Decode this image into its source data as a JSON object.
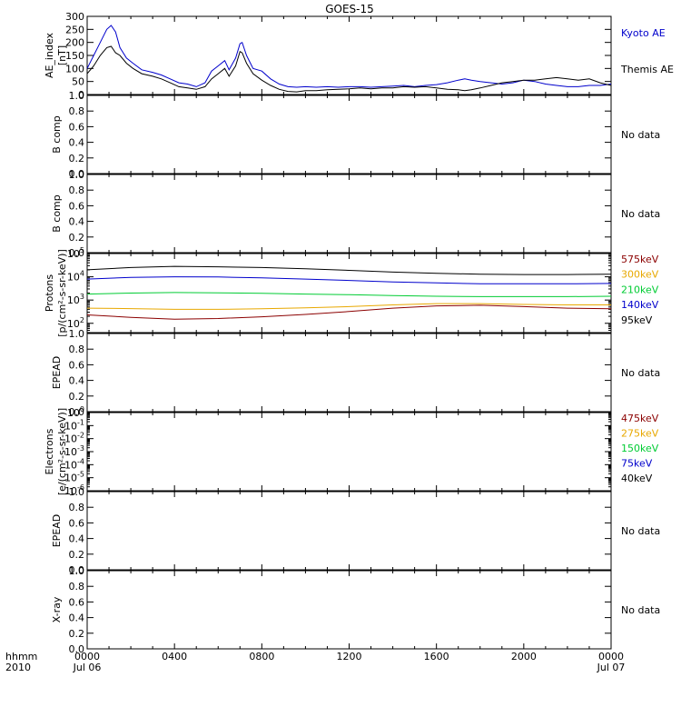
{
  "chart_data": {
    "type": "line",
    "title": "GOES-15",
    "x_axis": {
      "row_label_top": "hhmm",
      "row_label_bottom": "2010",
      "ticks": [
        {
          "hours": 0,
          "label": "0000",
          "sublabel": "Jul 06"
        },
        {
          "hours": 4,
          "label": "0400",
          "sublabel": ""
        },
        {
          "hours": 8,
          "label": "0800",
          "sublabel": ""
        },
        {
          "hours": 12,
          "label": "1200",
          "sublabel": ""
        },
        {
          "hours": 16,
          "label": "1600",
          "sublabel": ""
        },
        {
          "hours": 20,
          "label": "2000",
          "sublabel": ""
        },
        {
          "hours": 24,
          "label": "0000",
          "sublabel": "Jul 07"
        }
      ],
      "range_hours": [
        0,
        24
      ]
    },
    "panels": [
      {
        "id": "ae",
        "ylabel": [
          "AE_index",
          "[nT]"
        ],
        "scale": "linear",
        "ylim": [
          0,
          300
        ],
        "yticks": [
          "0",
          "50",
          "100",
          "150",
          "200",
          "250",
          "300"
        ],
        "yticks_values": [
          0,
          50,
          100,
          150,
          200,
          250,
          300
        ],
        "legend": [
          {
            "name": "Kyoto AE",
            "color": "#0000cc"
          },
          {
            "name": "Themis AE",
            "color": "#000000"
          }
        ],
        "series": [
          {
            "name": "Kyoto AE",
            "color": "#0000cc",
            "x": [
              0,
              0.3,
              0.6,
              0.9,
              1.1,
              1.3,
              1.5,
              1.8,
              2.1,
              2.5,
              3.0,
              3.4,
              3.8,
              4.2,
              4.6,
              5.0,
              5.4,
              5.7,
              6.0,
              6.3,
              6.5,
              6.8,
              7.0,
              7.1,
              7.3,
              7.6,
              8.0,
              8.4,
              8.8,
              9.2,
              9.6,
              10.0,
              10.5,
              11,
              11.5,
              12,
              12.5,
              13,
              13.5,
              14,
              14.5,
              15,
              15.5,
              16,
              16.5,
              17,
              17.3,
              17.6,
              18,
              18.5,
              19,
              19.5,
              20,
              20.5,
              21,
              21.5,
              22,
              22.5,
              23,
              23.5,
              24
            ],
            "y": [
              100,
              150,
              200,
              250,
              265,
              240,
              180,
              140,
              120,
              95,
              85,
              75,
              60,
              45,
              40,
              30,
              45,
              90,
              110,
              130,
              95,
              140,
              195,
              200,
              150,
              100,
              90,
              60,
              40,
              30,
              28,
              30,
              28,
              30,
              28,
              30,
              30,
              28,
              30,
              32,
              35,
              30,
              35,
              38,
              45,
              55,
              60,
              55,
              50,
              45,
              40,
              45,
              55,
              50,
              40,
              35,
              30,
              30,
              35,
              35,
              40
            ]
          },
          {
            "name": "Themis AE",
            "color": "#000000",
            "x": [
              0,
              0.3,
              0.6,
              0.9,
              1.1,
              1.3,
              1.5,
              1.8,
              2.1,
              2.5,
              3.0,
              3.4,
              3.8,
              4.2,
              4.6,
              5.0,
              5.4,
              5.7,
              6.0,
              6.3,
              6.5,
              6.8,
              7.0,
              7.1,
              7.3,
              7.6,
              8.0,
              8.4,
              8.8,
              9.2,
              9.6,
              10.0,
              10.5,
              11,
              11.5,
              12,
              12.5,
              13,
              13.5,
              14,
              14.5,
              15,
              15.5,
              16,
              16.5,
              17,
              17.3,
              17.6,
              18,
              18.5,
              19,
              19.5,
              20,
              20.5,
              21,
              21.5,
              22,
              22.5,
              23,
              23.5,
              24
            ],
            "y": [
              80,
              110,
              150,
              180,
              185,
              160,
              150,
              120,
              100,
              80,
              70,
              60,
              45,
              30,
              25,
              20,
              30,
              60,
              80,
              100,
              70,
              110,
              165,
              160,
              120,
              80,
              55,
              35,
              20,
              12,
              10,
              15,
              15,
              18,
              20,
              22,
              25,
              22,
              25,
              25,
              30,
              28,
              30,
              25,
              20,
              18,
              15,
              18,
              25,
              35,
              45,
              50,
              55,
              55,
              60,
              65,
              60,
              55,
              60,
              45,
              35
            ]
          }
        ]
      },
      {
        "id": "b1",
        "ylabel": [
          "B comp"
        ],
        "scale": "linear",
        "ylim": [
          0,
          1
        ],
        "yticks": [
          "0.0",
          "0.2",
          "0.4",
          "0.6",
          "0.8",
          "1.0"
        ],
        "yticks_values": [
          0,
          0.2,
          0.4,
          0.6,
          0.8,
          1.0
        ],
        "annotation": "No data"
      },
      {
        "id": "b2",
        "ylabel": [
          "B comp"
        ],
        "scale": "linear",
        "ylim": [
          0,
          1
        ],
        "yticks": [
          "0.0",
          "0.2",
          "0.4",
          "0.6",
          "0.8",
          "1.0"
        ],
        "yticks_values": [
          0,
          0.2,
          0.4,
          0.6,
          0.8,
          1.0
        ],
        "annotation": "No data"
      },
      {
        "id": "protons",
        "ylabel": [
          "Protons",
          "[p/(cm²-s-sr-keV)]"
        ],
        "scale": "log",
        "ylim_exp": [
          1.6,
          5
        ],
        "yticks": [
          {
            "mantissa": "10",
            "exp": "2",
            "value_exp": 2
          },
          {
            "mantissa": "10",
            "exp": "3",
            "value_exp": 3
          },
          {
            "mantissa": "10",
            "exp": "4",
            "value_exp": 4
          },
          {
            "mantissa": "10",
            "exp": "5",
            "value_exp": 5
          }
        ],
        "legend": [
          {
            "name": "575keV",
            "color": "#8b0000"
          },
          {
            "name": "300keV",
            "color": "#e8a800"
          },
          {
            "name": "210keV",
            "color": "#00cc33"
          },
          {
            "name": "140keV",
            "color": "#0000cc"
          },
          {
            "name": "95keV",
            "color": "#000000"
          }
        ],
        "series": [
          {
            "name": "95keV",
            "color": "#000000",
            "x": [
              0,
              2,
              4,
              6,
              8,
              10,
              12,
              14,
              16,
              18,
              20,
              22,
              24
            ],
            "y": [
              20000,
              25000,
              28000,
              27000,
              25000,
              22000,
              19000,
              16000,
              14000,
              13000,
              12500,
              12500,
              13000
            ]
          },
          {
            "name": "140keV",
            "color": "#0000cc",
            "x": [
              0,
              2,
              4,
              6,
              8,
              10,
              12,
              14,
              16,
              18,
              20,
              22,
              24
            ],
            "y": [
              8000,
              9500,
              10000,
              9800,
              9000,
              8000,
              7000,
              6000,
              5500,
              5000,
              5000,
              5000,
              5200
            ]
          },
          {
            "name": "210keV",
            "color": "#00cc33",
            "x": [
              0,
              2,
              4,
              6,
              8,
              10,
              12,
              14,
              16,
              18,
              20,
              22,
              24
            ],
            "y": [
              1800,
              2000,
              2100,
              2050,
              1950,
              1800,
              1700,
              1550,
              1450,
              1400,
              1400,
              1400,
              1450
            ]
          },
          {
            "name": "300keV",
            "color": "#e8a800",
            "x": [
              0,
              2,
              4,
              6,
              8,
              10,
              12,
              14,
              16,
              18,
              20,
              22,
              24
            ],
            "y": [
              450,
              430,
              400,
              400,
              420,
              460,
              520,
              620,
              700,
              700,
              650,
              620,
              620
            ]
          },
          {
            "name": "575keV",
            "color": "#8b0000",
            "x": [
              0,
              2,
              4,
              6,
              8,
              10,
              12,
              14,
              16,
              18,
              20,
              22,
              24
            ],
            "y": [
              230,
              180,
              150,
              160,
              190,
              240,
              320,
              450,
              560,
              600,
              520,
              450,
              420
            ]
          }
        ]
      },
      {
        "id": "epead1",
        "ylabel": [
          "EPEAD"
        ],
        "scale": "linear",
        "ylim": [
          0,
          1
        ],
        "yticks": [
          "0.0",
          "0.2",
          "0.4",
          "0.6",
          "0.8",
          "1.0"
        ],
        "yticks_values": [
          0,
          0.2,
          0.4,
          0.6,
          0.8,
          1.0
        ],
        "annotation": "No data"
      },
      {
        "id": "electrons",
        "ylabel": [
          "Electrons",
          "[e/(cm²-s-sr-keV)]"
        ],
        "scale": "log",
        "ylim_exp": [
          -6,
          0
        ],
        "yticks": [
          {
            "mantissa": "10",
            "exp": "0",
            "value_exp": 0
          },
          {
            "mantissa": "10",
            "exp": "-1",
            "value_exp": -1
          },
          {
            "mantissa": "10",
            "exp": "-2",
            "value_exp": -2
          },
          {
            "mantissa": "10",
            "exp": "-3",
            "value_exp": -3
          },
          {
            "mantissa": "10",
            "exp": "-4",
            "value_exp": -4
          },
          {
            "mantissa": "10",
            "exp": "-5",
            "value_exp": -5
          },
          {
            "mantissa": "10",
            "exp": "-6",
            "value_exp": -6
          }
        ],
        "legend": [
          {
            "name": "475keV",
            "color": "#8b0000"
          },
          {
            "name": "275keV",
            "color": "#e8a800"
          },
          {
            "name": "150keV",
            "color": "#00cc33"
          },
          {
            "name": "75keV",
            "color": "#0000cc"
          },
          {
            "name": "40keV",
            "color": "#000000"
          }
        ]
      },
      {
        "id": "epead2",
        "ylabel": [
          "EPEAD"
        ],
        "scale": "linear",
        "ylim": [
          0,
          1
        ],
        "yticks": [
          "0.0",
          "0.2",
          "0.4",
          "0.6",
          "0.8",
          "1.0"
        ],
        "yticks_values": [
          0,
          0.2,
          0.4,
          0.6,
          0.8,
          1.0
        ],
        "annotation": "No data"
      },
      {
        "id": "xray",
        "ylabel": [
          "X-ray"
        ],
        "scale": "linear",
        "ylim": [
          0,
          1
        ],
        "yticks": [
          "0.0",
          "0.2",
          "0.4",
          "0.6",
          "0.8",
          "1.0"
        ],
        "yticks_values": [
          0,
          0.2,
          0.4,
          0.6,
          0.8,
          1.0
        ],
        "annotation": "No data"
      }
    ]
  }
}
